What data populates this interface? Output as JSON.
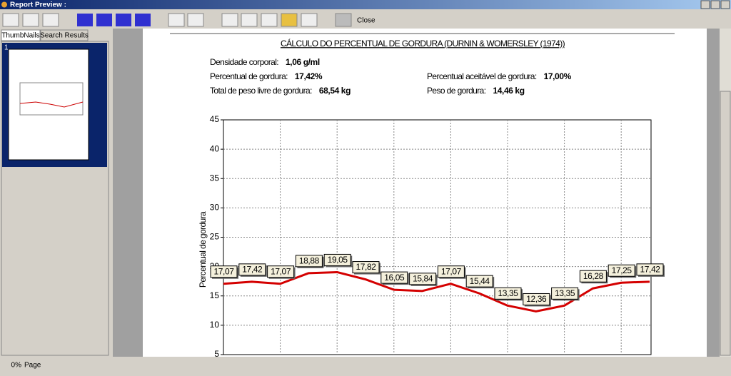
{
  "window": {
    "title": "Report Preview :",
    "close_label": "Close",
    "tabs": [
      "ThumbNails",
      "Search Results"
    ],
    "page_number": "1",
    "status_percent": "0%",
    "status_page": "Page"
  },
  "report": {
    "title": "CÁLCULO DO PERCENTUAL DE GORDURA (DURNIN & WOMERSLEY (1974))",
    "fields": [
      {
        "label": "Densidade corporal:",
        "value": "1,06 g/ml"
      },
      {
        "label": "Percentual de gordura:",
        "value": "17,42%"
      },
      {
        "label": "Percentual aceitável de gordura:",
        "value": "17,00%"
      },
      {
        "label": "Total de peso livre de gordura:",
        "value": "68,54 kg"
      },
      {
        "label": "Peso de gordura:",
        "value": "14,46 kg"
      }
    ]
  },
  "chart_data": {
    "type": "line",
    "y_label": "Percentual de gordura",
    "categories": [
      null,
      null,
      null,
      null,
      null,
      null,
      null,
      null,
      null,
      null,
      null,
      null,
      null,
      null,
      null,
      null
    ],
    "series": [
      {
        "color": "#d40000",
        "values": [
          17.07,
          17.42,
          17.07,
          18.88,
          19.05,
          17.82,
          16.05,
          15.84,
          17.07,
          15.44,
          13.35,
          12.36,
          13.35,
          16.28,
          17.25,
          17.42
        ],
        "value_labels": [
          "17,07",
          "17,42",
          "17,07",
          "18,88",
          "19,05",
          "17,82",
          "16,05",
          "15,84",
          "17,07",
          "15,44",
          "13,35",
          "12,36",
          "13,35",
          "16,28",
          "17,25",
          "17,42"
        ]
      }
    ],
    "ylim": [
      5,
      45
    ],
    "yticks": [
      5,
      10,
      15,
      20,
      25,
      30,
      35,
      40,
      45
    ],
    "grid": true
  }
}
